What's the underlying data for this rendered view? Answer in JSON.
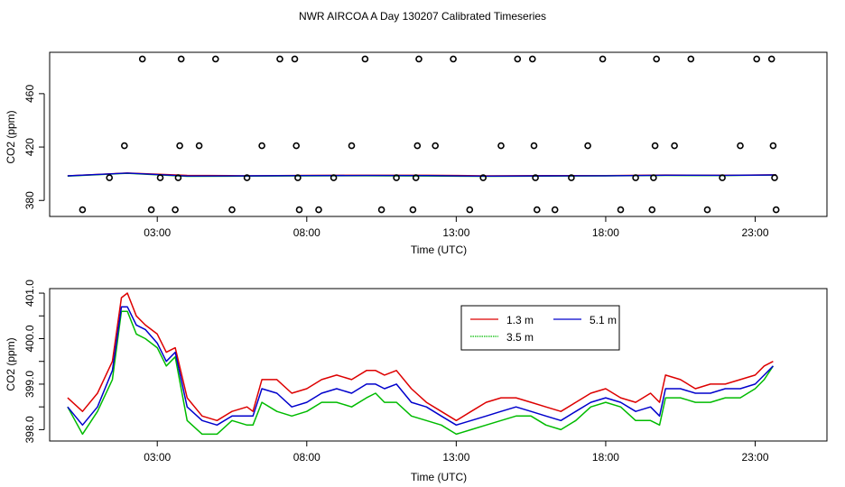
{
  "page_title": "NWR AIRCOA A  Day 130207  Calibrated Timeseries",
  "colors": {
    "line_1_3": "#dd0000",
    "line_3_5": "#00bb00",
    "line_5_1": "#0000cc",
    "axis": "#000000",
    "background": "#ffffff"
  },
  "chart_data": [
    {
      "type": "scatter+line",
      "title": "",
      "xlabel": "Time (UTC)",
      "ylabel": "CO2 (ppm)",
      "x_units": "hours UTC",
      "xlim": [
        -0.6,
        25.4
      ],
      "ylim": [
        368,
        491
      ],
      "x_ticks": [
        3,
        8,
        13,
        18,
        23
      ],
      "x_tick_labels": [
        "03:00",
        "08:00",
        "13:00",
        "18:00",
        "23:00"
      ],
      "y_ticks": [
        380,
        420,
        460
      ],
      "y_tick_labels": [
        "380",
        "420",
        "460"
      ],
      "grid": false,
      "scatter_points": [
        {
          "x": 0.5,
          "y": 373
        },
        {
          "x": 1.4,
          "y": 397
        },
        {
          "x": 1.9,
          "y": 421
        },
        {
          "x": 2.5,
          "y": 486
        },
        {
          "x": 2.8,
          "y": 373
        },
        {
          "x": 3.1,
          "y": 397
        },
        {
          "x": 3.6,
          "y": 373
        },
        {
          "x": 3.7,
          "y": 397
        },
        {
          "x": 3.75,
          "y": 421
        },
        {
          "x": 3.8,
          "y": 486
        },
        {
          "x": 4.4,
          "y": 421
        },
        {
          "x": 4.95,
          "y": 486
        },
        {
          "x": 5.5,
          "y": 373
        },
        {
          "x": 6.0,
          "y": 397
        },
        {
          "x": 6.5,
          "y": 421
        },
        {
          "x": 7.1,
          "y": 486
        },
        {
          "x": 7.6,
          "y": 486
        },
        {
          "x": 7.65,
          "y": 421
        },
        {
          "x": 7.7,
          "y": 397
        },
        {
          "x": 7.75,
          "y": 373
        },
        {
          "x": 8.4,
          "y": 373
        },
        {
          "x": 8.9,
          "y": 397
        },
        {
          "x": 9.5,
          "y": 421
        },
        {
          "x": 9.95,
          "y": 486
        },
        {
          "x": 10.5,
          "y": 373
        },
        {
          "x": 11.0,
          "y": 397
        },
        {
          "x": 11.55,
          "y": 373
        },
        {
          "x": 11.65,
          "y": 397
        },
        {
          "x": 11.7,
          "y": 421
        },
        {
          "x": 11.75,
          "y": 486
        },
        {
          "x": 12.3,
          "y": 421
        },
        {
          "x": 12.9,
          "y": 486
        },
        {
          "x": 13.45,
          "y": 373
        },
        {
          "x": 13.9,
          "y": 397
        },
        {
          "x": 14.5,
          "y": 421
        },
        {
          "x": 15.05,
          "y": 486
        },
        {
          "x": 15.55,
          "y": 486
        },
        {
          "x": 15.6,
          "y": 421
        },
        {
          "x": 15.65,
          "y": 397
        },
        {
          "x": 15.7,
          "y": 373
        },
        {
          "x": 16.3,
          "y": 373
        },
        {
          "x": 16.85,
          "y": 397
        },
        {
          "x": 17.4,
          "y": 421
        },
        {
          "x": 17.9,
          "y": 486
        },
        {
          "x": 18.5,
          "y": 373
        },
        {
          "x": 19.0,
          "y": 397
        },
        {
          "x": 19.55,
          "y": 373
        },
        {
          "x": 19.6,
          "y": 397
        },
        {
          "x": 19.65,
          "y": 421
        },
        {
          "x": 19.7,
          "y": 486
        },
        {
          "x": 20.3,
          "y": 421
        },
        {
          "x": 20.85,
          "y": 486
        },
        {
          "x": 21.4,
          "y": 373
        },
        {
          "x": 21.9,
          "y": 397
        },
        {
          "x": 22.5,
          "y": 421
        },
        {
          "x": 23.05,
          "y": 486
        },
        {
          "x": 23.55,
          "y": 486
        },
        {
          "x": 23.6,
          "y": 421
        },
        {
          "x": 23.65,
          "y": 397
        },
        {
          "x": 23.7,
          "y": 373
        }
      ],
      "lines": [
        {
          "name": "1.3 m",
          "color": "#dd0000",
          "x": [
            0,
            2,
            4,
            6,
            8,
            10,
            12,
            14,
            16,
            18,
            20,
            22,
            23.7
          ],
          "y": [
            398.5,
            400.6,
            398.8,
            398.5,
            398.8,
            398.9,
            398.9,
            398.5,
            398.6,
            398.6,
            399.0,
            398.9,
            399.2
          ]
        },
        {
          "name": "3.5 m",
          "color": "#00bb00",
          "x": [
            0,
            2,
            4,
            6,
            8,
            10,
            12,
            14,
            16,
            18,
            20,
            22,
            23.7
          ],
          "y": [
            398.2,
            400.3,
            398.0,
            398.2,
            398.4,
            398.5,
            398.3,
            398.0,
            398.2,
            398.4,
            398.7,
            398.6,
            399.0
          ]
        },
        {
          "name": "5.1 m",
          "color": "#0000cc",
          "x": [
            0,
            2,
            4,
            6,
            8,
            10,
            12,
            14,
            16,
            18,
            20,
            22,
            23.7
          ],
          "y": [
            398.4,
            400.5,
            398.3,
            398.4,
            398.6,
            398.7,
            398.6,
            398.2,
            398.4,
            398.5,
            398.9,
            398.8,
            399.1
          ]
        }
      ]
    },
    {
      "type": "line",
      "title": "",
      "xlabel": "Time (UTC)",
      "ylabel": "CO2 (ppm)",
      "x_units": "hours UTC",
      "xlim": [
        -0.6,
        25.4
      ],
      "ylim": [
        397.75,
        401.1
      ],
      "x_ticks": [
        3,
        8,
        13,
        18,
        23
      ],
      "x_tick_labels": [
        "03:00",
        "08:00",
        "13:00",
        "18:00",
        "23:00"
      ],
      "y_ticks": [
        398.0,
        398.5,
        399.0,
        399.5,
        400.0,
        400.5,
        401.0
      ],
      "y_tick_labels": [
        "398.0",
        "",
        "399.0",
        "",
        "400.0",
        "",
        "401.0"
      ],
      "grid": false,
      "legend_position": "top-center",
      "legend": [
        "1.3 m",
        "5.1 m",
        "3.5 m"
      ],
      "x": [
        0.0,
        0.5,
        1.0,
        1.5,
        1.8,
        2.0,
        2.3,
        2.6,
        3.0,
        3.3,
        3.6,
        4.0,
        4.5,
        5.0,
        5.5,
        6.0,
        6.2,
        6.5,
        7.0,
        7.5,
        8.0,
        8.5,
        9.0,
        9.5,
        10.0,
        10.3,
        10.6,
        11.0,
        11.5,
        12.0,
        12.5,
        13.0,
        13.5,
        14.0,
        14.5,
        15.0,
        15.5,
        16.0,
        16.5,
        17.0,
        17.5,
        18.0,
        18.5,
        19.0,
        19.5,
        19.8,
        20.0,
        20.5,
        21.0,
        21.5,
        22.0,
        22.5,
        23.0,
        23.3,
        23.6
      ],
      "series": [
        {
          "name": "1.3 m",
          "color": "#dd0000",
          "values": [
            398.7,
            398.4,
            398.8,
            399.5,
            400.9,
            401.0,
            400.5,
            400.3,
            400.1,
            399.7,
            399.8,
            398.7,
            398.3,
            398.2,
            398.4,
            398.5,
            398.4,
            399.1,
            399.1,
            398.8,
            398.9,
            399.1,
            399.2,
            399.1,
            399.3,
            399.3,
            399.2,
            399.3,
            398.9,
            398.6,
            398.4,
            398.2,
            398.4,
            398.6,
            398.7,
            398.7,
            398.6,
            398.5,
            398.4,
            398.6,
            398.8,
            398.9,
            398.7,
            398.6,
            398.8,
            398.6,
            399.2,
            399.1,
            398.9,
            399.0,
            399.0,
            399.1,
            399.2,
            399.4,
            399.5
          ]
        },
        {
          "name": "3.5 m",
          "color": "#00bb00",
          "values": [
            398.5,
            397.9,
            398.4,
            399.1,
            400.6,
            400.6,
            400.1,
            400.0,
            399.8,
            399.4,
            399.6,
            398.2,
            397.9,
            397.9,
            398.2,
            398.1,
            398.1,
            398.6,
            398.4,
            398.3,
            398.4,
            398.6,
            398.6,
            398.5,
            398.7,
            398.8,
            398.6,
            398.6,
            398.3,
            398.2,
            398.1,
            397.9,
            398.0,
            398.1,
            398.2,
            398.3,
            398.3,
            398.1,
            398.0,
            398.2,
            398.5,
            398.6,
            398.5,
            398.2,
            398.2,
            398.1,
            398.7,
            398.7,
            398.6,
            398.6,
            398.7,
            398.7,
            398.9,
            399.1,
            399.4
          ]
        },
        {
          "name": "5.1 m",
          "color": "#0000cc",
          "values": [
            398.5,
            398.1,
            398.5,
            399.3,
            400.7,
            400.7,
            400.3,
            400.2,
            399.9,
            399.5,
            399.7,
            398.5,
            398.2,
            398.1,
            398.3,
            398.3,
            398.3,
            398.9,
            398.8,
            398.5,
            398.6,
            398.8,
            398.9,
            398.8,
            399.0,
            399.0,
            398.9,
            399.0,
            398.6,
            398.5,
            398.3,
            398.1,
            398.2,
            398.3,
            398.4,
            398.5,
            398.4,
            398.3,
            398.2,
            398.4,
            398.6,
            398.7,
            398.6,
            398.4,
            398.5,
            398.3,
            398.9,
            398.9,
            398.8,
            398.8,
            398.9,
            398.9,
            399.0,
            399.2,
            399.4
          ]
        }
      ]
    }
  ]
}
